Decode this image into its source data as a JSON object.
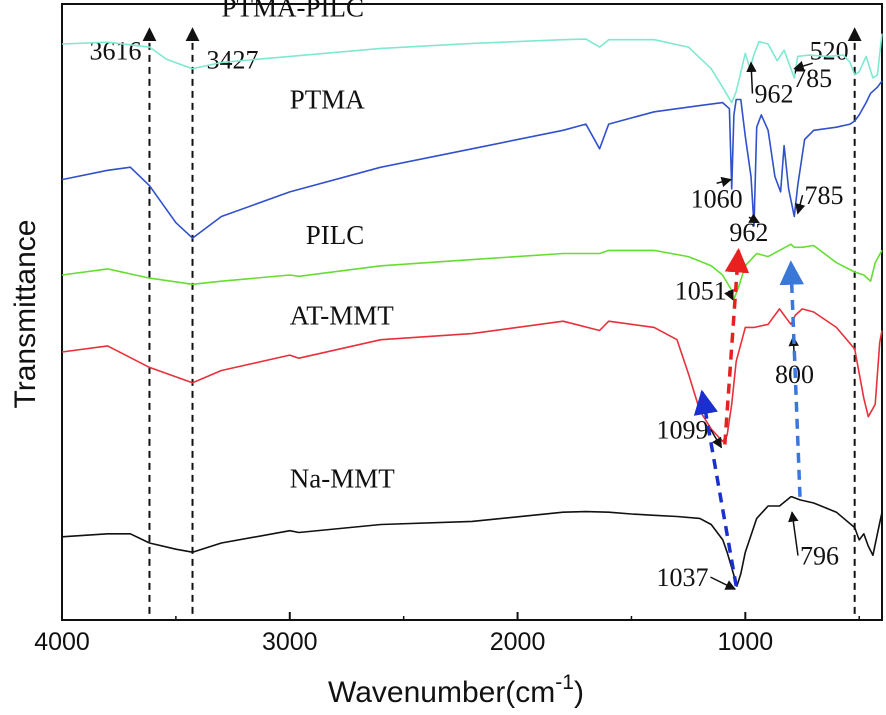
{
  "chart_data": {
    "type": "line",
    "title": "",
    "xlabel": "Wavenumber(cm",
    "xlabel_sup": "-1",
    "xlabel_close": ")",
    "ylabel": "Transmittance",
    "xlim": [
      4000,
      400
    ],
    "x_reversed": true,
    "y_ticks_shown": false,
    "grid": false,
    "x_ticks": [
      {
        "value": 4000,
        "label": "4000"
      },
      {
        "value": 3000,
        "label": "3000"
      },
      {
        "value": 2000,
        "label": "2000"
      },
      {
        "value": 1000,
        "label": "1000"
      }
    ],
    "series": [
      {
        "name": "PTMA-PILC",
        "color": "#7fe8d0",
        "x": [
          4000,
          3800,
          3616,
          3540,
          3427,
          3300,
          3000,
          2600,
          2200,
          1800,
          1700,
          1640,
          1600,
          1400,
          1250,
          1150,
          1100,
          1060,
          1040,
          1000,
          980,
          962,
          940,
          900,
          860,
          830,
          800,
          785,
          770,
          720,
          640,
          570,
          540,
          520,
          500,
          470,
          440,
          420,
          400
        ],
        "y": [
          93.5,
          93.8,
          93.0,
          91.0,
          89.5,
          90.5,
          91.5,
          92.8,
          93.6,
          94.2,
          94.3,
          93.0,
          94.2,
          94.2,
          93.0,
          89.5,
          86.5,
          84.0,
          85.8,
          92.0,
          89.5,
          91.8,
          93.9,
          93.5,
          90.8,
          92.5,
          89.5,
          88.0,
          91.5,
          91.7,
          91.5,
          91.7,
          90.5,
          88.5,
          89.0,
          91.5,
          88.0,
          88.5,
          95.2
        ]
      },
      {
        "name": "PTMA",
        "color": "#3050cc",
        "x": [
          4000,
          3800,
          3700,
          3616,
          3500,
          3427,
          3300,
          3000,
          2600,
          2200,
          1800,
          1700,
          1640,
          1600,
          1400,
          1200,
          1100,
          1070,
          1060,
          1050,
          1040,
          1020,
          1000,
          975,
          962,
          950,
          930,
          900,
          870,
          845,
          830,
          810,
          785,
          770,
          740,
          700,
          600,
          540,
          520,
          500,
          470,
          450,
          420,
          400
        ],
        "y": [
          71.5,
          73.0,
          73.5,
          70.5,
          64.5,
          62.0,
          65.5,
          69.5,
          73.5,
          76.5,
          79.5,
          80.5,
          76.5,
          80.5,
          82.5,
          83.5,
          84.0,
          83.0,
          70.0,
          82.0,
          84.5,
          84.5,
          78.5,
          72.0,
          64.0,
          80.0,
          82.0,
          79.5,
          72.0,
          69.5,
          77.0,
          70.0,
          65.5,
          70.5,
          78.0,
          79.5,
          80.0,
          80.5,
          81.0,
          82.0,
          84.0,
          85.5,
          86.5,
          87.5
        ]
      },
      {
        "name": "PILC",
        "color": "#66dd33",
        "x": [
          4000,
          3800,
          3616,
          3427,
          3300,
          3000,
          2960,
          2600,
          2200,
          1800,
          1640,
          1600,
          1400,
          1250,
          1150,
          1100,
          1060,
          1051,
          1030,
          1000,
          950,
          900,
          850,
          800,
          785,
          750,
          700,
          600,
          520,
          480,
          450,
          430,
          400
        ],
        "y": [
          56.0,
          57.0,
          55.5,
          54.5,
          55.0,
          56.0,
          55.8,
          57.5,
          58.5,
          59.5,
          59.5,
          60.0,
          60.0,
          59.0,
          57.5,
          56.0,
          53.5,
          52.0,
          54.0,
          57.5,
          59.5,
          59.0,
          60.0,
          61.0,
          60.5,
          60.5,
          60.8,
          58.0,
          56.5,
          56.0,
          55.0,
          58.0,
          60.0
        ]
      },
      {
        "name": "AT-MMT",
        "color": "#e8303a",
        "x": [
          4000,
          3800,
          3616,
          3427,
          3300,
          3000,
          2960,
          2600,
          2200,
          1800,
          1640,
          1600,
          1400,
          1300,
          1250,
          1200,
          1150,
          1099,
          1080,
          1060,
          1040,
          1000,
          960,
          900,
          850,
          820,
          800,
          780,
          750,
          700,
          600,
          520,
          480,
          460,
          430,
          410,
          400
        ],
        "y": [
          43.5,
          44.5,
          41.0,
          38.5,
          40.5,
          43.0,
          42.5,
          45.5,
          46.5,
          48.5,
          47.0,
          48.5,
          47.5,
          45.5,
          40.0,
          34.0,
          31.0,
          29.0,
          30.0,
          35.0,
          42.0,
          47.5,
          47.5,
          48.0,
          50.5,
          49.0,
          48.0,
          49.5,
          50.5,
          50.0,
          47.5,
          44.0,
          36.0,
          33.0,
          35.0,
          45.0,
          47.0
        ]
      },
      {
        "name": "Na-MMT",
        "color": "#111111",
        "x": [
          4000,
          3800,
          3700,
          3616,
          3500,
          3427,
          3300,
          3000,
          2960,
          2600,
          2200,
          1800,
          1700,
          1600,
          1500,
          1400,
          1300,
          1200,
          1150,
          1099,
          1080,
          1060,
          1037,
          1020,
          1000,
          950,
          900,
          850,
          800,
          796,
          760,
          700,
          600,
          520,
          500,
          480,
          460,
          440,
          420,
          400
        ],
        "y": [
          13.5,
          14.0,
          14.0,
          12.5,
          11.5,
          11.0,
          12.5,
          14.5,
          14.2,
          15.5,
          16.0,
          17.5,
          17.6,
          17.5,
          17.2,
          17.0,
          16.8,
          16.5,
          15.5,
          13.0,
          11.0,
          8.5,
          5.5,
          7.5,
          11.0,
          16.5,
          18.5,
          18.5,
          20.0,
          20.0,
          19.5,
          19.0,
          17.5,
          15.0,
          13.0,
          14.0,
          12.0,
          10.5,
          14.0,
          17.5
        ]
      }
    ],
    "series_labels": [
      {
        "text": "PTMA-PILC",
        "x": 3300,
        "y": 98.0
      },
      {
        "text": "PTMA",
        "x": 3000,
        "y": 83.0
      },
      {
        "text": "PILC",
        "x": 2930,
        "y": 61.0
      },
      {
        "text": "AT-MMT",
        "x": 3000,
        "y": 48.0
      },
      {
        "text": "Na-MMT",
        "x": 3000,
        "y": 21.5
      }
    ],
    "guide_lines": [
      {
        "value": 3616,
        "label": "3616"
      },
      {
        "value": 3427,
        "label": "3427"
      },
      {
        "value": 520,
        "label": "520"
      }
    ],
    "peak_annotations": [
      {
        "label": "962",
        "label_x": 960,
        "label_y": 84.0,
        "target_x": 975,
        "target_y": 90.5
      },
      {
        "label": "785",
        "label_x": 790,
        "label_y": 86.5,
        "target_x": 785,
        "target_y": 89.5
      },
      {
        "label": "1060",
        "label_x": 1240,
        "label_y": 67.0,
        "target_x": 1063,
        "target_y": 71.5
      },
      {
        "label": "962",
        "label_x": 1070,
        "label_y": 61.5,
        "target_x": 940,
        "target_y": 64.5
      },
      {
        "label": "785",
        "label_x": 740,
        "label_y": 67.5,
        "target_x": 770,
        "target_y": 66.0
      },
      {
        "label": "1051",
        "label_x": 1310,
        "label_y": 52.0,
        "target_x": 1055,
        "target_y": 52.0
      },
      {
        "label": "800",
        "label_x": 870,
        "label_y": 38.5,
        "target_x": 790,
        "target_y": 46.0
      },
      {
        "label": "1099",
        "label_x": 1390,
        "label_y": 29.5,
        "target_x": 1105,
        "target_y": 28.0
      },
      {
        "label": "796",
        "label_x": 760,
        "label_y": 9.0,
        "target_x": 795,
        "target_y": 17.5
      },
      {
        "label": "1037",
        "label_x": 1390,
        "label_y": 5.5,
        "target_x": 1045,
        "target_y": 5.0
      }
    ],
    "shift_arrows": [
      {
        "color": "#1a2fd0",
        "from_x": 1040,
        "from_y": 5.5,
        "to_x": 1190,
        "to_y": 37.0
      },
      {
        "color": "#e82020",
        "from_x": 1090,
        "from_y": 28.5,
        "to_x": 1030,
        "to_y": 60.0
      },
      {
        "color": "#3a78d8",
        "from_x": 760,
        "from_y": 20.0,
        "to_x": 800,
        "to_y": 58.0
      }
    ]
  }
}
